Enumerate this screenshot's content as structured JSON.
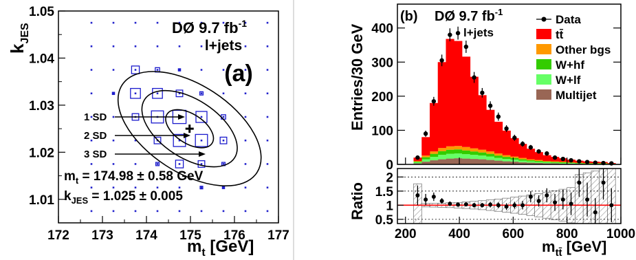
{
  "chart_data": [
    {
      "type": "scatter",
      "panel_tag": "(a)",
      "header_main": "DØ 9.7 fb",
      "header_sup": "-1",
      "header_sub": "l+jets",
      "xlabel_main": "m",
      "xlabel_sub": "t",
      "xlabel_unit": " [GeV]",
      "ylabel_main": "k",
      "ylabel_sub": "JES",
      "xlim": [
        172,
        177
      ],
      "ylim": [
        1.005,
        1.05
      ],
      "xticks": [
        "172",
        "173",
        "174",
        "175",
        "176",
        "177"
      ],
      "yticks": [
        "1.01",
        "1.02",
        "1.03",
        "1.04",
        "1.05"
      ],
      "grid_x": [
        172.75,
        173.25,
        173.75,
        174.25,
        174.75,
        175.25,
        175.75,
        176.25,
        176.75
      ],
      "grid_y": [
        1.0075,
        1.0125,
        1.0175,
        1.0225,
        1.0275,
        1.0325,
        1.0375,
        1.0425,
        1.0475
      ],
      "boxes": [
        {
          "x": 173.75,
          "y": 1.0375,
          "w": 0.35
        },
        {
          "x": 174.25,
          "y": 1.0375,
          "w": 0.2
        },
        {
          "x": 174.75,
          "y": 1.0375,
          "w": 0.1
        },
        {
          "x": 173.25,
          "y": 1.0325,
          "w": 0.1
        },
        {
          "x": 173.75,
          "y": 1.0325,
          "w": 0.45
        },
        {
          "x": 174.25,
          "y": 1.0325,
          "w": 0.45
        },
        {
          "x": 174.75,
          "y": 1.0325,
          "w": 0.3
        },
        {
          "x": 175.25,
          "y": 1.0325,
          "w": 0.15
        },
        {
          "x": 173.75,
          "y": 1.0275,
          "w": 0.3
        },
        {
          "x": 174.25,
          "y": 1.0275,
          "w": 0.55
        },
        {
          "x": 174.75,
          "y": 1.0275,
          "w": 0.6
        },
        {
          "x": 175.25,
          "y": 1.0275,
          "w": 0.5
        },
        {
          "x": 175.75,
          "y": 1.0275,
          "w": 0.2
        },
        {
          "x": 174.25,
          "y": 1.0225,
          "w": 0.3
        },
        {
          "x": 174.75,
          "y": 1.0225,
          "w": 0.55
        },
        {
          "x": 175.25,
          "y": 1.0225,
          "w": 0.55
        },
        {
          "x": 175.75,
          "y": 1.0225,
          "w": 0.3
        },
        {
          "x": 174.25,
          "y": 1.0175,
          "w": 0.15
        },
        {
          "x": 174.75,
          "y": 1.0175,
          "w": 0.35
        },
        {
          "x": 175.25,
          "y": 1.0175,
          "w": 0.3
        },
        {
          "x": 175.75,
          "y": 1.0175,
          "w": 0.15
        },
        {
          "x": 175.25,
          "y": 1.0125,
          "w": 0.12
        },
        {
          "x": 175.75,
          "y": 1.0125,
          "w": 0.1
        }
      ],
      "ellipses": [
        {
          "label": "1 SD",
          "sx": 0.58,
          "sy": 0.005
        },
        {
          "label": "2 SD",
          "sx": 1.16,
          "sy": 0.01
        },
        {
          "label": "3 SD",
          "sx": 1.74,
          "sy": 0.015
        }
      ],
      "center": {
        "x": 174.98,
        "y": 1.025
      },
      "result_mt_prefix": "m",
      "result_mt_sub": "t",
      "result_mt_value": " = 174.98  ± 0.58 GeV",
      "result_k_prefix": "k",
      "result_k_sub": "JES",
      "result_k_value": " = 1.025  ± 0.005"
    },
    {
      "type": "histogram",
      "panel_tag": "(b)",
      "header_main": "DØ  9.7 fb",
      "header_sup": "-1",
      "header_sub": "l+jets",
      "ylabel": "Entries/30 GeV",
      "ratio_ylabel": "Ratio",
      "xlabel_main": "m",
      "xlabel_sub": "tt̄",
      "xlabel_unit": " [GeV]",
      "xlim": [
        170,
        1000
      ],
      "ylim": [
        0,
        470
      ],
      "ratio_ylim": [
        0.35,
        2.3
      ],
      "xticks": [
        "200",
        "400",
        "600",
        "800",
        "1000"
      ],
      "yticks": [
        "0",
        "100",
        "200",
        "300",
        "400"
      ],
      "ratio_yticks": [
        "0.5",
        "1",
        "1.5",
        "2"
      ],
      "bin_edges": [
        230,
        260,
        290,
        320,
        350,
        380,
        410,
        440,
        470,
        500,
        530,
        560,
        590,
        620,
        650,
        680,
        710,
        740,
        770,
        800,
        830,
        860,
        890,
        920,
        950,
        980
      ],
      "stack": {
        "Multijet": [
          3,
          8,
          12,
          15,
          17,
          18,
          17,
          16,
          15,
          13,
          11,
          9,
          8,
          6,
          5,
          4,
          3,
          3,
          2,
          2,
          2,
          1,
          1,
          1,
          1
        ],
        "W+lf": [
          3,
          7,
          10,
          13,
          14,
          14,
          13,
          12,
          11,
          10,
          8,
          7,
          6,
          5,
          4,
          3,
          3,
          2,
          2,
          2,
          1,
          1,
          1,
          1,
          1
        ],
        "W+hf": [
          2,
          6,
          9,
          11,
          12,
          12,
          11,
          10,
          9,
          8,
          7,
          6,
          5,
          4,
          3,
          3,
          2,
          2,
          2,
          1,
          1,
          1,
          1,
          1,
          0
        ],
        "Other bgs": [
          2,
          5,
          7,
          9,
          10,
          10,
          10,
          9,
          8,
          7,
          6,
          5,
          4,
          4,
          3,
          3,
          2,
          2,
          2,
          1,
          1,
          1,
          1,
          1,
          0
        ],
        "tt̄": [
          10,
          54,
          142,
          252,
          315,
          308,
          265,
          210,
          160,
          122,
          93,
          72,
          54,
          41,
          31,
          23,
          17,
          13,
          10,
          8,
          6,
          5,
          4,
          3,
          2
        ]
      },
      "data_points": [
        {
          "x": 245,
          "y": 20,
          "e": 5
        },
        {
          "x": 275,
          "y": 90,
          "e": 9
        },
        {
          "x": 305,
          "y": 185,
          "e": 13
        },
        {
          "x": 335,
          "y": 305,
          "e": 17
        },
        {
          "x": 365,
          "y": 380,
          "e": 19
        },
        {
          "x": 395,
          "y": 385,
          "e": 19
        },
        {
          "x": 425,
          "y": 345,
          "e": 18
        },
        {
          "x": 455,
          "y": 255,
          "e": 16
        },
        {
          "x": 485,
          "y": 210,
          "e": 14
        },
        {
          "x": 515,
          "y": 172,
          "e": 13
        },
        {
          "x": 545,
          "y": 140,
          "e": 12
        },
        {
          "x": 575,
          "y": 105,
          "e": 10
        },
        {
          "x": 605,
          "y": 78,
          "e": 9
        },
        {
          "x": 635,
          "y": 60,
          "e": 8
        },
        {
          "x": 665,
          "y": 50,
          "e": 7
        },
        {
          "x": 695,
          "y": 38,
          "e": 6
        },
        {
          "x": 725,
          "y": 32,
          "e": 6
        },
        {
          "x": 755,
          "y": 20,
          "e": 4
        },
        {
          "x": 785,
          "y": 16,
          "e": 4
        },
        {
          "x": 815,
          "y": 12,
          "e": 3
        },
        {
          "x": 845,
          "y": 9,
          "e": 3
        },
        {
          "x": 875,
          "y": 7,
          "e": 3
        },
        {
          "x": 905,
          "y": 5,
          "e": 2
        },
        {
          "x": 935,
          "y": 4,
          "e": 2
        },
        {
          "x": 965,
          "y": 3,
          "e": 2
        }
      ],
      "ratio_points": [
        {
          "x": 245,
          "y": 1.35,
          "e": 0.35
        },
        {
          "x": 275,
          "y": 1.2,
          "e": 0.2
        },
        {
          "x": 305,
          "y": 1.3,
          "e": 0.15
        },
        {
          "x": 335,
          "y": 1.15,
          "e": 0.1
        },
        {
          "x": 365,
          "y": 1.05,
          "e": 0.08
        },
        {
          "x": 395,
          "y": 1.02,
          "e": 0.07
        },
        {
          "x": 425,
          "y": 1.03,
          "e": 0.07
        },
        {
          "x": 455,
          "y": 1.0,
          "e": 0.08
        },
        {
          "x": 485,
          "y": 1.0,
          "e": 0.08
        },
        {
          "x": 515,
          "y": 1.02,
          "e": 0.1
        },
        {
          "x": 545,
          "y": 1.0,
          "e": 0.1
        },
        {
          "x": 575,
          "y": 0.95,
          "e": 0.12
        },
        {
          "x": 605,
          "y": 1.0,
          "e": 0.12
        },
        {
          "x": 635,
          "y": 1.0,
          "e": 0.15
        },
        {
          "x": 665,
          "y": 1.3,
          "e": 0.2
        },
        {
          "x": 695,
          "y": 1.15,
          "e": 0.2
        },
        {
          "x": 725,
          "y": 1.35,
          "e": 0.25
        },
        {
          "x": 755,
          "y": 1.1,
          "e": 0.3
        },
        {
          "x": 785,
          "y": 1.2,
          "e": 0.35
        },
        {
          "x": 815,
          "y": 1.05,
          "e": 0.4
        },
        {
          "x": 845,
          "y": 1.8,
          "e": 0.5
        },
        {
          "x": 875,
          "y": 1.2,
          "e": 0.6
        },
        {
          "x": 905,
          "y": 0.75,
          "e": 0.5
        },
        {
          "x": 935,
          "y": 1.8,
          "e": 0.6
        },
        {
          "x": 965,
          "y": 1.0,
          "e": 0.6
        }
      ],
      "legend": [
        {
          "name": "Data",
          "kind": "marker",
          "color": "#000000"
        },
        {
          "name": "tt̄",
          "kind": "fill",
          "color": "#ff0000"
        },
        {
          "name": "Other bgs",
          "kind": "fill",
          "color": "#ff9900"
        },
        {
          "name": "W+hf",
          "kind": "fill",
          "color": "#33cc00"
        },
        {
          "name": "W+lf",
          "kind": "fill",
          "color": "#66ff66"
        },
        {
          "name": "Multijet",
          "kind": "fill",
          "color": "#996655"
        }
      ],
      "legend_placement": "top-right"
    }
  ]
}
